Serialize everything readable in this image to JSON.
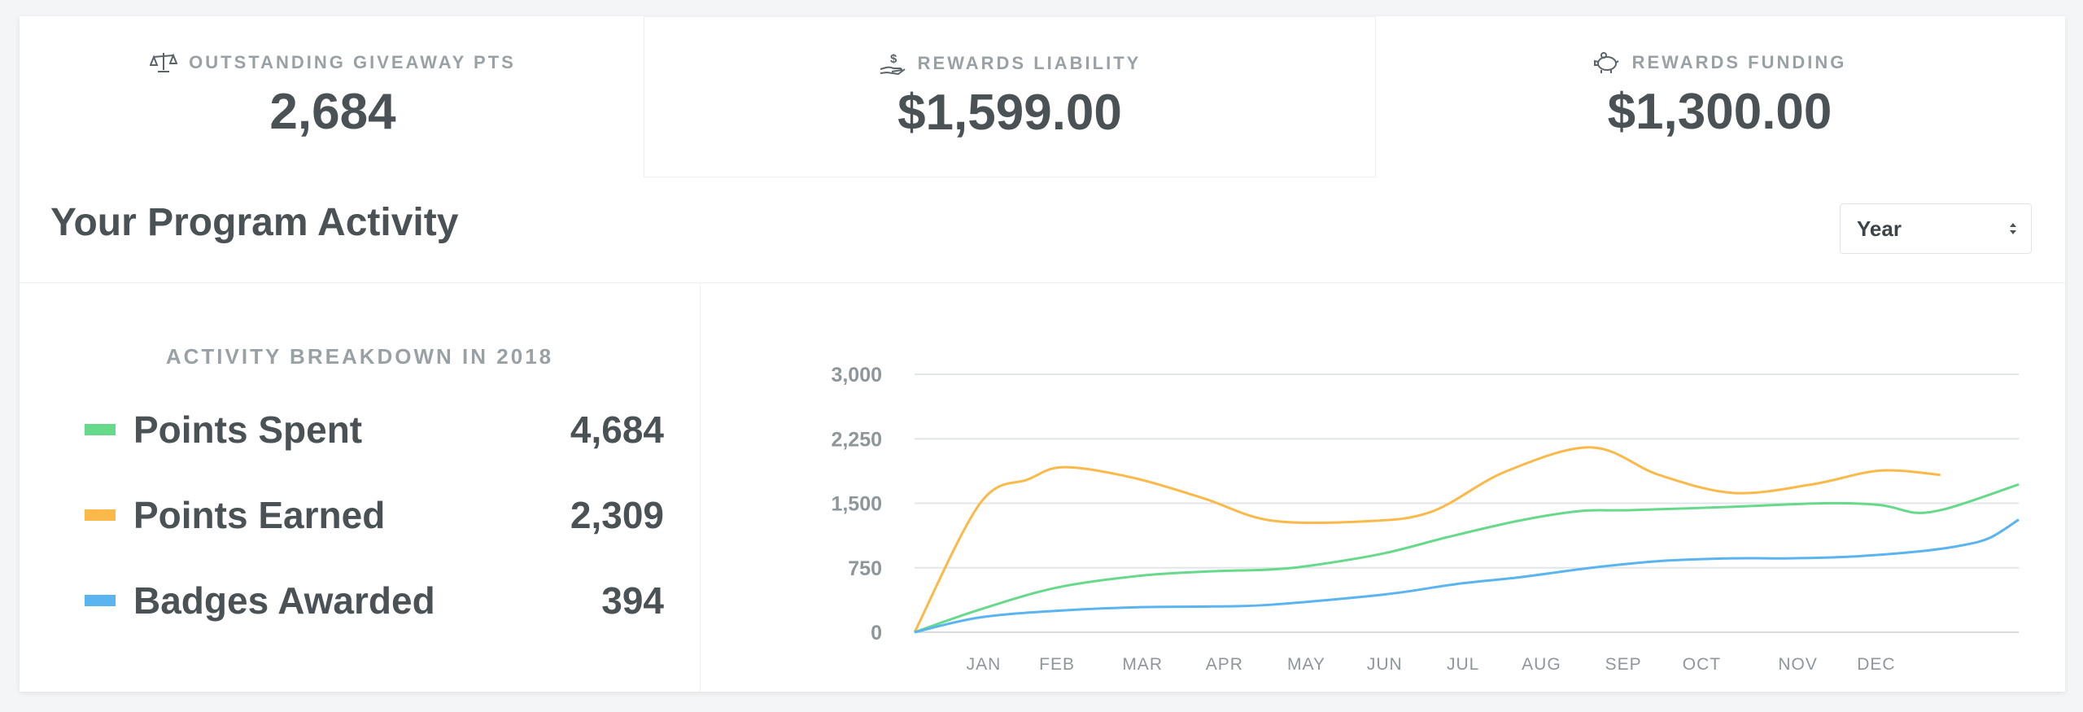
{
  "stats": [
    {
      "label": "OUTSTANDING GIVEAWAY PTS",
      "value": "2,684",
      "icon": "scale-icon"
    },
    {
      "label": "REWARDS LIABILITY",
      "value": "$1,599.00",
      "icon": "hand-dollar-icon"
    },
    {
      "label": "REWARDS FUNDING",
      "value": "$1,300.00",
      "icon": "piggy-bank-icon"
    }
  ],
  "activity": {
    "title": "Your Program Activity",
    "period_select": {
      "value": "Year"
    }
  },
  "breakdown": {
    "title": "ACTIVITY BREAKDOWN IN 2018",
    "items": [
      {
        "label": "Points Spent",
        "value": "4,684",
        "color": "#67d98b"
      },
      {
        "label": "Points Earned",
        "value": "2,309",
        "color": "#fbb94a"
      },
      {
        "label": "Badges Awarded",
        "value": "394",
        "color": "#5ab4f0"
      }
    ]
  },
  "chart_data": {
    "type": "line",
    "x": [
      "JAN",
      "FEB",
      "MAR",
      "APR",
      "MAY",
      "JUN",
      "JUL",
      "AUG",
      "SEP",
      "OCT",
      "NOV",
      "DEC"
    ],
    "yticks": [
      "0",
      "750",
      "1,500",
      "2,250",
      "3,000"
    ],
    "ylim": [
      0,
      3000
    ],
    "grid": true,
    "series": [
      {
        "name": "Points Earned",
        "color": "#fbb94a",
        "points": [
          [
            0,
            0
          ],
          [
            0.92,
            1500
          ],
          [
            1.6,
            1780
          ],
          [
            2.1,
            1920
          ],
          [
            3.05,
            1800
          ],
          [
            4.05,
            1560
          ],
          [
            5,
            1300
          ],
          [
            6.3,
            1290
          ],
          [
            7.25,
            1400
          ],
          [
            8.3,
            1870
          ],
          [
            9.5,
            2150
          ],
          [
            10.45,
            1830
          ],
          [
            11.5,
            1620
          ],
          [
            12.6,
            1720
          ],
          [
            13.55,
            1880
          ],
          [
            14.4,
            1830
          ]
        ]
      },
      {
        "name": "Points Spent",
        "color": "#67d98b",
        "points": [
          [
            0,
            0
          ],
          [
            0.9,
            260
          ],
          [
            2,
            520
          ],
          [
            3.2,
            660
          ],
          [
            4.2,
            710
          ],
          [
            5,
            730
          ],
          [
            5.6,
            780
          ],
          [
            6.6,
            920
          ],
          [
            7.5,
            1110
          ],
          [
            8.5,
            1300
          ],
          [
            9.35,
            1410
          ],
          [
            10.05,
            1420
          ],
          [
            11.5,
            1460
          ],
          [
            12.75,
            1500
          ],
          [
            13.55,
            1480
          ],
          [
            14.05,
            1390
          ],
          [
            14.45,
            1430
          ],
          [
            14.95,
            1560
          ],
          [
            15.5,
            1720
          ]
        ]
      },
      {
        "name": "Badges Awarded",
        "color": "#5ab4f0",
        "points": [
          [
            0,
            0
          ],
          [
            0.9,
            170
          ],
          [
            2,
            250
          ],
          [
            3.1,
            290
          ],
          [
            4.2,
            300
          ],
          [
            5,
            320
          ],
          [
            6.6,
            440
          ],
          [
            7.6,
            560
          ],
          [
            8.5,
            640
          ],
          [
            9.5,
            750
          ],
          [
            10.5,
            830
          ],
          [
            11.5,
            860
          ],
          [
            12.3,
            860
          ],
          [
            13.15,
            880
          ],
          [
            14.1,
            940
          ],
          [
            14.7,
            1010
          ],
          [
            15.1,
            1100
          ],
          [
            15.5,
            1310
          ]
        ]
      }
    ]
  }
}
